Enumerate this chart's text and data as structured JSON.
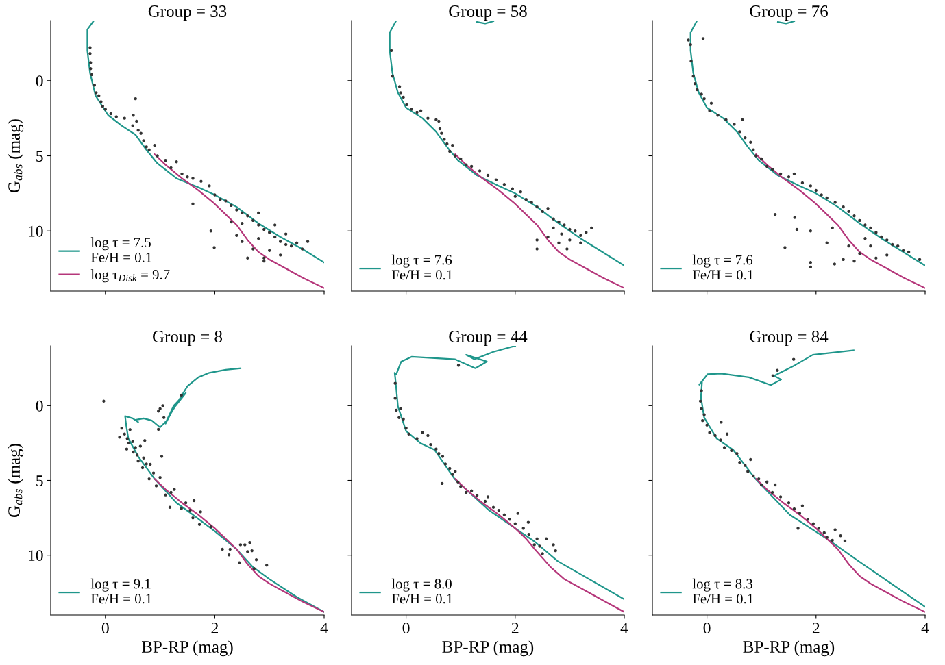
{
  "chart_data": [
    {
      "type": "scatter",
      "title": "Group = 33",
      "ylabel": "G$_{abs}$ (mag)",
      "xlim": [
        -1,
        4
      ],
      "ylim": [
        14,
        -4
      ],
      "xticks": [
        0,
        2,
        4
      ],
      "yticks": [
        0,
        5,
        10
      ],
      "tick_labels": "y",
      "legend": "bottom left",
      "grid": false,
      "series": [
        {
          "type": "scatter",
          "color": "#333333",
          "marker": "circle",
          "x": [
            -0.28,
            -0.28,
            -0.27,
            -0.27,
            -0.25,
            -0.2,
            -0.17,
            -0.12,
            -0.08,
            -0.05,
            0.0,
            0.1,
            0.2,
            0.35,
            0.5,
            0.55,
            0.51,
            0.57,
            0.6,
            0.65,
            0.7,
            0.75,
            0.8,
            0.9,
            0.95,
            1.1,
            1.2,
            1.3,
            1.4,
            1.5,
            1.6,
            1.75,
            1.9,
            1.6,
            1.93,
            1.99,
            2.0,
            2.1,
            2.2,
            2.3,
            2.4,
            2.5,
            2.6,
            2.5,
            2.7,
            2.8,
            2.9,
            3.0,
            2.8,
            3.1,
            3.2,
            3.3,
            3.4,
            3.0,
            2.7,
            2.9,
            3.2,
            2.5,
            2.4,
            3.5,
            3.6,
            2.6,
            2.9,
            3.1,
            3.3,
            2.8,
            2.3,
            3.7
          ],
          "values": [
            -2.2,
            -1.8,
            -1.2,
            -0.8,
            -0.4,
            0.3,
            0.8,
            1.0,
            1.4,
            1.7,
            1.9,
            2.2,
            2.4,
            2.5,
            3.0,
            1.2,
            2.3,
            2.7,
            3.3,
            3.5,
            4.0,
            4.4,
            4.6,
            4.3,
            5.0,
            5.3,
            5.8,
            5.4,
            6.2,
            6.4,
            6.5,
            6.7,
            7.0,
            8.2,
            10.0,
            11.1,
            7.6,
            7.9,
            8.0,
            8.3,
            8.6,
            8.8,
            9.0,
            9.5,
            9.3,
            9.6,
            9.9,
            10.1,
            10.5,
            10.4,
            10.7,
            10.9,
            11.0,
            11.3,
            11.2,
            11.8,
            11.6,
            10.7,
            10.3,
            10.8,
            11.2,
            11.8,
            12.0,
            9.6,
            10.2,
            8.8,
            9.4,
            10.7
          ]
        },
        {
          "type": "line",
          "name": "log τ = 7.5\nFe/H = 0.1",
          "color": "#1f968b",
          "x": [
            -0.21,
            -0.33,
            -0.33,
            -0.28,
            -0.18,
            0.05,
            0.3,
            0.55,
            0.75,
            0.95,
            1.3,
            1.7,
            2.0,
            2.4,
            2.8,
            3.2,
            3.6,
            4.0
          ],
          "values": [
            -4.0,
            -3.4,
            -2.0,
            -0.5,
            1.0,
            2.3,
            3.0,
            3.6,
            4.6,
            5.5,
            6.5,
            7.1,
            7.6,
            8.4,
            9.5,
            10.4,
            11.2,
            12.1
          ]
        },
        {
          "type": "line",
          "name": "log τ$_{Disk}$ = 9.7",
          "color": "#b5367a",
          "x": [
            0.9,
            1.1,
            1.4,
            1.7,
            2.0,
            2.2,
            2.4,
            2.6,
            2.8,
            3.0,
            3.3,
            3.6,
            4.0
          ],
          "values": [
            4.9,
            5.6,
            6.5,
            7.3,
            8.2,
            8.9,
            9.6,
            10.6,
            11.4,
            11.9,
            12.5,
            13.1,
            13.8
          ]
        }
      ]
    },
    {
      "type": "scatter",
      "title": "Group = 58",
      "xlim": [
        -1,
        4
      ],
      "ylim": [
        14,
        -4
      ],
      "xticks": [
        0,
        2,
        4
      ],
      "yticks": [
        0,
        5,
        10
      ],
      "tick_labels": false,
      "legend": "bottom left",
      "grid": false,
      "series": [
        {
          "type": "scatter",
          "color": "#333333",
          "marker": "circle",
          "x": [
            -0.27,
            -0.25,
            -0.12,
            -0.1,
            -0.05,
            0.01,
            0.1,
            0.2,
            0.27,
            0.4,
            0.55,
            0.6,
            0.62,
            0.65,
            0.7,
            0.75,
            0.85,
            0.8,
            0.9,
            1.0,
            1.1,
            1.2,
            1.35,
            1.5,
            1.65,
            1.8,
            1.95,
            2.1,
            2.0,
            2.2,
            2.3,
            2.4,
            2.5,
            2.6,
            2.7,
            2.8,
            2.7,
            2.9,
            3.0,
            2.85,
            3.1,
            3.2,
            3.0,
            2.8,
            3.3,
            2.6,
            2.4,
            2.4,
            3.4,
            3.2,
            2.95
          ],
          "values": [
            -2.0,
            -0.3,
            0.4,
            0.8,
            1.1,
            1.6,
            1.9,
            2.1,
            2.0,
            2.5,
            2.6,
            2.7,
            3.2,
            3.5,
            3.9,
            4.2,
            4.3,
            4.7,
            5.0,
            5.2,
            5.6,
            5.7,
            6.0,
            6.3,
            6.6,
            6.9,
            7.2,
            7.4,
            7.7,
            7.9,
            8.1,
            8.4,
            8.7,
            8.5,
            9.2,
            9.4,
            9.8,
            9.6,
            9.9,
            10.2,
            10.0,
            10.3,
            10.6,
            10.8,
            10.1,
            10.4,
            10.6,
            11.2,
            9.8,
            10.8,
            11.2
          ]
        },
        {
          "type": "line",
          "name": "log τ = 7.6\nFe/H = 0.1",
          "color": "#1f968b",
          "x": [
            -0.18,
            -0.3,
            -0.3,
            -0.25,
            -0.15,
            0.0,
            0.3,
            0.55,
            0.75,
            0.95,
            1.3,
            1.7,
            2.0,
            2.4,
            2.8,
            3.2,
            3.6,
            4.0,
            null,
            1.3,
            1.45,
            1.6
          ],
          "values": [
            -4.0,
            -3.2,
            -2.0,
            -0.5,
            0.8,
            1.8,
            2.5,
            3.4,
            4.4,
            5.3,
            6.3,
            7.0,
            7.5,
            8.4,
            9.5,
            10.5,
            11.4,
            12.3,
            null,
            -3.9,
            -3.8,
            -3.95
          ]
        },
        {
          "type": "line",
          "color": "#b5367a",
          "x": [
            0.9,
            1.1,
            1.4,
            1.7,
            2.0,
            2.2,
            2.4,
            2.6,
            2.8,
            3.0,
            3.3,
            3.6,
            4.0
          ],
          "values": [
            4.9,
            5.6,
            6.5,
            7.3,
            8.2,
            8.9,
            9.6,
            10.6,
            11.4,
            11.9,
            12.5,
            13.1,
            13.8
          ]
        }
      ]
    },
    {
      "type": "scatter",
      "title": "Group = 76",
      "xlim": [
        -1,
        4
      ],
      "ylim": [
        14,
        -4
      ],
      "xticks": [
        0,
        2,
        4
      ],
      "yticks": [
        0,
        5,
        10
      ],
      "tick_labels": false,
      "legend": "bottom left",
      "grid": false,
      "series": [
        {
          "type": "scatter",
          "color": "#333333",
          "marker": "circle",
          "x": [
            -0.34,
            -0.07,
            -0.3,
            -0.29,
            -0.25,
            -0.22,
            -0.18,
            -0.1,
            -0.05,
            0.08,
            0.05,
            0.2,
            0.35,
            0.5,
            0.6,
            0.65,
            0.7,
            0.8,
            0.85,
            0.9,
            1.0,
            1.1,
            1.2,
            1.35,
            1.5,
            1.6,
            1.75,
            1.9,
            2.0,
            2.1,
            2.2,
            2.35,
            2.5,
            2.6,
            2.7,
            2.8,
            2.9,
            3.0,
            3.1,
            3.2,
            3.3,
            3.4,
            3.5,
            3.6,
            2.9,
            3.0,
            2.8,
            3.1,
            2.7,
            2.6,
            3.3,
            3.7,
            3.9,
            1.25,
            1.61,
            1.43,
            1.9,
            1.9,
            2.34,
            1.65,
            1.9,
            2.2,
            2.5,
            2.3
          ],
          "values": [
            -2.7,
            -2.8,
            -2.4,
            -1.3,
            -0.3,
            0.2,
            0.6,
            0.9,
            1.2,
            1.5,
            2.0,
            2.3,
            2.6,
            2.9,
            3.4,
            2.6,
            3.8,
            4.1,
            4.6,
            5.0,
            5.2,
            5.7,
            5.9,
            6.2,
            6.4,
            6.2,
            6.8,
            7.0,
            7.3,
            7.6,
            7.8,
            8.1,
            8.4,
            8.7,
            9.0,
            9.3,
            9.6,
            9.8,
            10.1,
            10.4,
            10.6,
            10.9,
            11.0,
            11.3,
            10.5,
            11.0,
            11.5,
            11.8,
            12.0,
            11.0,
            11.6,
            11.4,
            11.9,
            8.9,
            9.1,
            11.1,
            12.1,
            12.4,
            12.2,
            9.9,
            10.0,
            10.8,
            11.9,
            9.8
          ]
        },
        {
          "type": "line",
          "name": "log τ = 7.6\nFe/H = 0.1",
          "color": "#1f968b",
          "x": [
            -0.18,
            -0.3,
            -0.3,
            -0.25,
            -0.15,
            0.0,
            0.3,
            0.55,
            0.75,
            0.95,
            1.3,
            1.7,
            2.0,
            2.4,
            2.8,
            3.2,
            3.6,
            4.0,
            null,
            1.3,
            1.45,
            1.6
          ],
          "values": [
            -4.0,
            -3.2,
            -2.0,
            -0.5,
            0.8,
            1.8,
            2.5,
            3.4,
            4.4,
            5.3,
            6.3,
            7.0,
            7.5,
            8.4,
            9.5,
            10.5,
            11.4,
            12.3,
            null,
            -3.9,
            -3.8,
            -3.95
          ]
        },
        {
          "type": "line",
          "color": "#b5367a",
          "x": [
            0.9,
            1.1,
            1.4,
            1.7,
            2.0,
            2.2,
            2.4,
            2.6,
            2.8,
            3.0,
            3.3,
            3.6,
            4.0
          ],
          "values": [
            4.9,
            5.6,
            6.5,
            7.3,
            8.2,
            8.9,
            9.6,
            10.6,
            11.4,
            11.9,
            12.5,
            13.1,
            13.8
          ]
        }
      ]
    },
    {
      "type": "scatter",
      "title": "Group = 8",
      "xlabel": "BP-RP (mag)",
      "ylabel": "G$_{abs}$ (mag)",
      "xlim": [
        -1,
        4
      ],
      "ylim": [
        14,
        -4
      ],
      "xticks": [
        0,
        2,
        4
      ],
      "yticks": [
        0,
        5,
        10
      ],
      "legend": "bottom left",
      "grid": false,
      "series": [
        {
          "type": "scatter",
          "color": "#333333",
          "marker": "circle",
          "x": [
            -0.03,
            0.97,
            1.05,
            1.07,
            0.97,
            1.39,
            1.0,
            0.26,
            0.35,
            0.43,
            0.39,
            0.51,
            0.6,
            0.68,
            0.8,
            0.93,
            0.72,
            0.64,
            1.03,
            0.82,
            1.26,
            1.1,
            1.18,
            1.39,
            1.47,
            1.62,
            1.6,
            1.74,
            1.72,
            1.93,
            2.14,
            2.26,
            2.47,
            2.55,
            2.64,
            2.45,
            2.6,
            2.76,
            2.95,
            2.72,
            2.68,
            2.28,
            0.3,
            0.4,
            0.45,
            0.5,
            0.55,
            0.58,
            0.7,
            0.75,
            0.88,
            1.0,
            1.2,
            1.55
          ],
          "values": [
            -0.3,
            0.36,
            0.0,
            0.8,
            1.58,
            -0.7,
            0.2,
            2.1,
            1.9,
            2.5,
            2.9,
            3.1,
            3.7,
            4.15,
            4.9,
            5.36,
            2.33,
            2.71,
            3.4,
            3.92,
            5.6,
            5.97,
            6.8,
            6.88,
            6.5,
            6.35,
            7.5,
            7.1,
            7.94,
            8.1,
            9.6,
            9.98,
            9.3,
            9.3,
            9.15,
            10.5,
            9.76,
            10.3,
            10.67,
            10.9,
            9.7,
            9.6,
            1.5,
            2.2,
            1.6,
            2.4,
            2.8,
            3.3,
            3.5,
            3.9,
            4.5,
            4.8,
            5.8,
            7.0
          ]
        },
        {
          "type": "line",
          "name": "log τ = 9.1\nFe/H = 0.1",
          "color": "#1f968b",
          "x": [
            4.0,
            3.5,
            3.0,
            2.7,
            2.4,
            2.0,
            1.6,
            1.3,
            0.9,
            0.6,
            0.42,
            0.38,
            0.36,
            0.5,
            0.6,
            0.55,
            0.7,
            0.85,
            1.0,
            1.12,
            1.25,
            1.47,
            1.2,
            1.1,
            1.2,
            1.5,
            1.7,
            1.9,
            2.2,
            2.47
          ],
          "values": [
            13.8,
            12.8,
            11.6,
            10.8,
            9.6,
            8.4,
            7.3,
            6.5,
            4.9,
            3.4,
            2.2,
            1.3,
            0.7,
            0.85,
            1.1,
            0.95,
            0.85,
            1.0,
            1.45,
            1.0,
            0.0,
            -0.85,
            0.4,
            1.2,
            0.5,
            -1.3,
            -1.9,
            -2.2,
            -2.4,
            -2.5
          ]
        },
        {
          "type": "line",
          "color": "#b5367a",
          "x": [
            0.9,
            1.1,
            1.4,
            1.7,
            2.0,
            2.2,
            2.4,
            2.6,
            2.8,
            3.0,
            3.3,
            3.6,
            4.0
          ],
          "values": [
            4.9,
            5.6,
            6.5,
            7.3,
            8.2,
            8.9,
            9.6,
            10.6,
            11.4,
            11.9,
            12.5,
            13.1,
            13.8
          ]
        }
      ]
    },
    {
      "type": "scatter",
      "title": "Group = 44",
      "xlabel": "BP-RP (mag)",
      "xlim": [
        -1,
        4
      ],
      "ylim": [
        14,
        -4
      ],
      "xticks": [
        0,
        2,
        4
      ],
      "yticks": [
        0,
        5,
        10
      ],
      "tick_labels": "x",
      "legend": "bottom left",
      "grid": false,
      "series": [
        {
          "type": "scatter",
          "color": "#333333",
          "marker": "circle",
          "x": [
            0.96,
            -0.2,
            -0.2,
            -0.18,
            -0.13,
            -0.1,
            -0.05,
            0.0,
            0.05,
            0.2,
            0.3,
            0.4,
            0.45,
            0.55,
            0.6,
            0.67,
            0.72,
            0.8,
            0.85,
            0.9,
            0.66,
            0.95,
            1.0,
            1.1,
            1.2,
            1.3,
            1.45,
            1.5,
            1.6,
            1.7,
            1.8,
            1.9,
            2.0,
            2.05,
            2.15,
            2.25,
            2.24,
            2.4,
            2.45,
            2.57,
            2.7,
            2.74,
            2.5,
            2.35
          ],
          "values": [
            -2.7,
            -1.5,
            -0.5,
            0.3,
            0.8,
            0.2,
            0.9,
            1.5,
            1.9,
            2.2,
            1.8,
            2.0,
            2.6,
            2.9,
            3.2,
            3.4,
            3.9,
            4.2,
            4.6,
            4.4,
            5.2,
            5.1,
            5.4,
            5.8,
            5.7,
            6.0,
            6.4,
            6.1,
            6.8,
            7.0,
            7.3,
            7.6,
            7.9,
            7.2,
            8.2,
            8.6,
            7.8,
            8.9,
            9.4,
            8.9,
            9.3,
            9.7,
            9.9,
            9.3
          ]
        },
        {
          "type": "line",
          "name": "log τ = 8.0\nFe/H = 0.1",
          "color": "#1f968b",
          "x": [
            4.0,
            2.78,
            2.36,
            1.52,
            0.89,
            0.52,
            0.26,
            0.0,
            -0.15,
            -0.2,
            -0.21,
            -0.18,
            -0.09,
            0.1,
            0.9,
            1.27,
            1.48,
            1.1,
            1.25,
            1.6,
            2.0
          ],
          "values": [
            12.95,
            10.4,
            9.1,
            7.0,
            4.9,
            2.95,
            2.5,
            1.7,
            0.05,
            -1.9,
            -2.2,
            -2.1,
            -2.95,
            -3.27,
            -3.1,
            -2.5,
            -2.95,
            -3.4,
            -3.1,
            -3.6,
            -4.0
          ]
        },
        {
          "type": "line",
          "color": "#b5367a",
          "x": [
            0.9,
            1.1,
            1.4,
            1.7,
            2.0,
            2.2,
            2.36,
            2.65,
            2.9,
            3.3,
            3.6,
            4.0
          ],
          "values": [
            4.9,
            5.6,
            6.5,
            7.3,
            8.2,
            8.9,
            9.6,
            10.8,
            11.6,
            12.4,
            13.0,
            13.8
          ]
        }
      ]
    },
    {
      "type": "scatter",
      "title": "Group = 84",
      "xlabel": "BP-RP (mag)",
      "xlim": [
        -1,
        4
      ],
      "ylim": [
        14,
        -4
      ],
      "xticks": [
        0,
        2,
        4
      ],
      "yticks": [
        0,
        5,
        10
      ],
      "tick_labels": "x",
      "legend": "bottom left",
      "grid": false,
      "series": [
        {
          "type": "scatter",
          "color": "#333333",
          "marker": "circle",
          "x": [
            1.29,
            1.21,
            1.59,
            -0.1,
            -0.12,
            -0.1,
            -0.05,
            -0.08,
            0.0,
            0.05,
            0.15,
            0.25,
            0.32,
            0.45,
            0.55,
            0.6,
            0.7,
            0.75,
            0.85,
            0.8,
            0.95,
            1.0,
            1.1,
            1.2,
            1.25,
            1.35,
            1.5,
            1.6,
            1.7,
            1.75,
            1.85,
            1.95,
            2.05,
            2.15,
            2.2,
            2.3,
            2.35,
            2.45,
            2.53,
            1.67,
            0.26,
            0.37
          ],
          "values": [
            -2.36,
            -2.0,
            -3.1,
            -1.0,
            -0.3,
            0.2,
            0.6,
            1.0,
            1.3,
            1.8,
            2.0,
            2.3,
            2.8,
            3.0,
            3.2,
            3.8,
            4.0,
            4.4,
            4.7,
            3.6,
            4.9,
            5.3,
            5.1,
            5.8,
            5.3,
            6.1,
            6.5,
            6.9,
            7.2,
            6.7,
            7.6,
            7.9,
            8.2,
            8.5,
            8.8,
            9.0,
            8.3,
            8.7,
            9.05,
            8.2,
            1.1,
            1.9
          ]
        },
        {
          "type": "line",
          "name": "log τ = 8.3\nFe/H = 0.1",
          "color": "#1f968b",
          "x": [
            4.0,
            2.78,
            2.24,
            1.52,
            0.89,
            0.48,
            0.18,
            -0.05,
            -0.11,
            -0.09,
            -0.14,
            0.01,
            0.26,
            0.77,
            1.17,
            1.36,
            1.23,
            1.61,
            1.94,
            2.69
          ],
          "values": [
            13.45,
            10.4,
            9.0,
            7.3,
            4.9,
            2.95,
            2.2,
            0.8,
            -0.55,
            -1.6,
            -1.4,
            -2.1,
            -2.15,
            -1.9,
            -1.38,
            -1.75,
            -2.0,
            -2.7,
            -3.4,
            -3.7
          ]
        },
        {
          "type": "line",
          "color": "#b5367a",
          "x": [
            0.9,
            1.1,
            1.4,
            1.7,
            2.0,
            2.2,
            2.4,
            2.6,
            2.8,
            3.0,
            3.3,
            3.6,
            4.0
          ],
          "values": [
            4.9,
            5.6,
            6.5,
            7.3,
            8.2,
            8.9,
            9.6,
            10.6,
            11.4,
            11.9,
            12.5,
            13.1,
            13.8
          ]
        }
      ]
    }
  ]
}
